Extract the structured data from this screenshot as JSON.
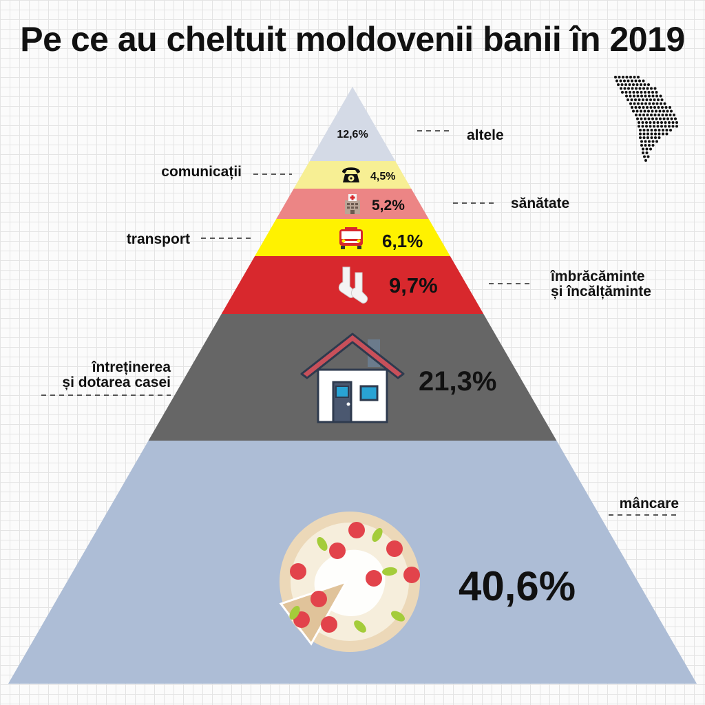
{
  "title": "Pe ce au cheltuit moldovenii banii în 2019",
  "chart_data": {
    "type": "pyramid",
    "unit": "%",
    "categories": [
      "altele",
      "comunicații",
      "sănătate",
      "transport",
      "îmbrăcăminte și încălțăminte",
      "întreținerea și dotarea casei",
      "mâncare"
    ],
    "values": [
      12.6,
      4.5,
      5.2,
      6.1,
      9.7,
      21.3,
      40.6
    ],
    "value_labels": [
      "12,6%",
      "4,5%",
      "5,2%",
      "6,1%",
      "9,7%",
      "21,3%",
      "40,6%"
    ],
    "colors": [
      "#d4dae6",
      "#f7ef94",
      "#ec8585",
      "#fff200",
      "#d8282d",
      "#666666",
      "#adbdd6"
    ],
    "icons": [
      null,
      "telephone-icon",
      "hospital-icon",
      "bus-icon",
      "socks-icon",
      "house-icon",
      "pizza-icon"
    ],
    "label_lines": [
      [
        "altele"
      ],
      [
        "comunicații"
      ],
      [
        "sănătate"
      ],
      [
        "transport"
      ],
      [
        "îmbrăcăminte",
        "și încălțăminte"
      ],
      [
        "întreținerea",
        "și dotarea casei"
      ],
      [
        "mâncare"
      ]
    ]
  },
  "decorations": {
    "map": "moldova-map-icon"
  }
}
